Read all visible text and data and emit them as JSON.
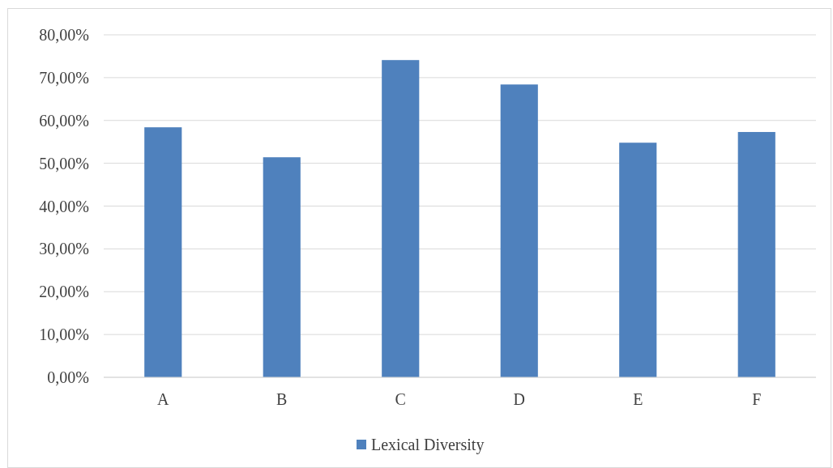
{
  "chart_data": {
    "type": "bar",
    "categories": [
      "A",
      "B",
      "C",
      "D",
      "E",
      "F"
    ],
    "series": [
      {
        "name": "Lexical Diversity",
        "color": "#4f81bd",
        "values": [
          58.4,
          51.4,
          74.1,
          68.4,
          54.8,
          57.3
        ]
      }
    ],
    "ylim": [
      0,
      80
    ],
    "yticks": [
      {
        "value": 0,
        "label": "0,00%"
      },
      {
        "value": 10,
        "label": "10,00%"
      },
      {
        "value": 20,
        "label": "20,00%"
      },
      {
        "value": 30,
        "label": "30,00%"
      },
      {
        "value": 40,
        "label": "40,00%"
      },
      {
        "value": 50,
        "label": "50,00%"
      },
      {
        "value": 60,
        "label": "60,00%"
      },
      {
        "value": 70,
        "label": "70,00%"
      },
      {
        "value": 80,
        "label": "80,00%"
      }
    ],
    "grid": "y",
    "legend": "bottom"
  }
}
